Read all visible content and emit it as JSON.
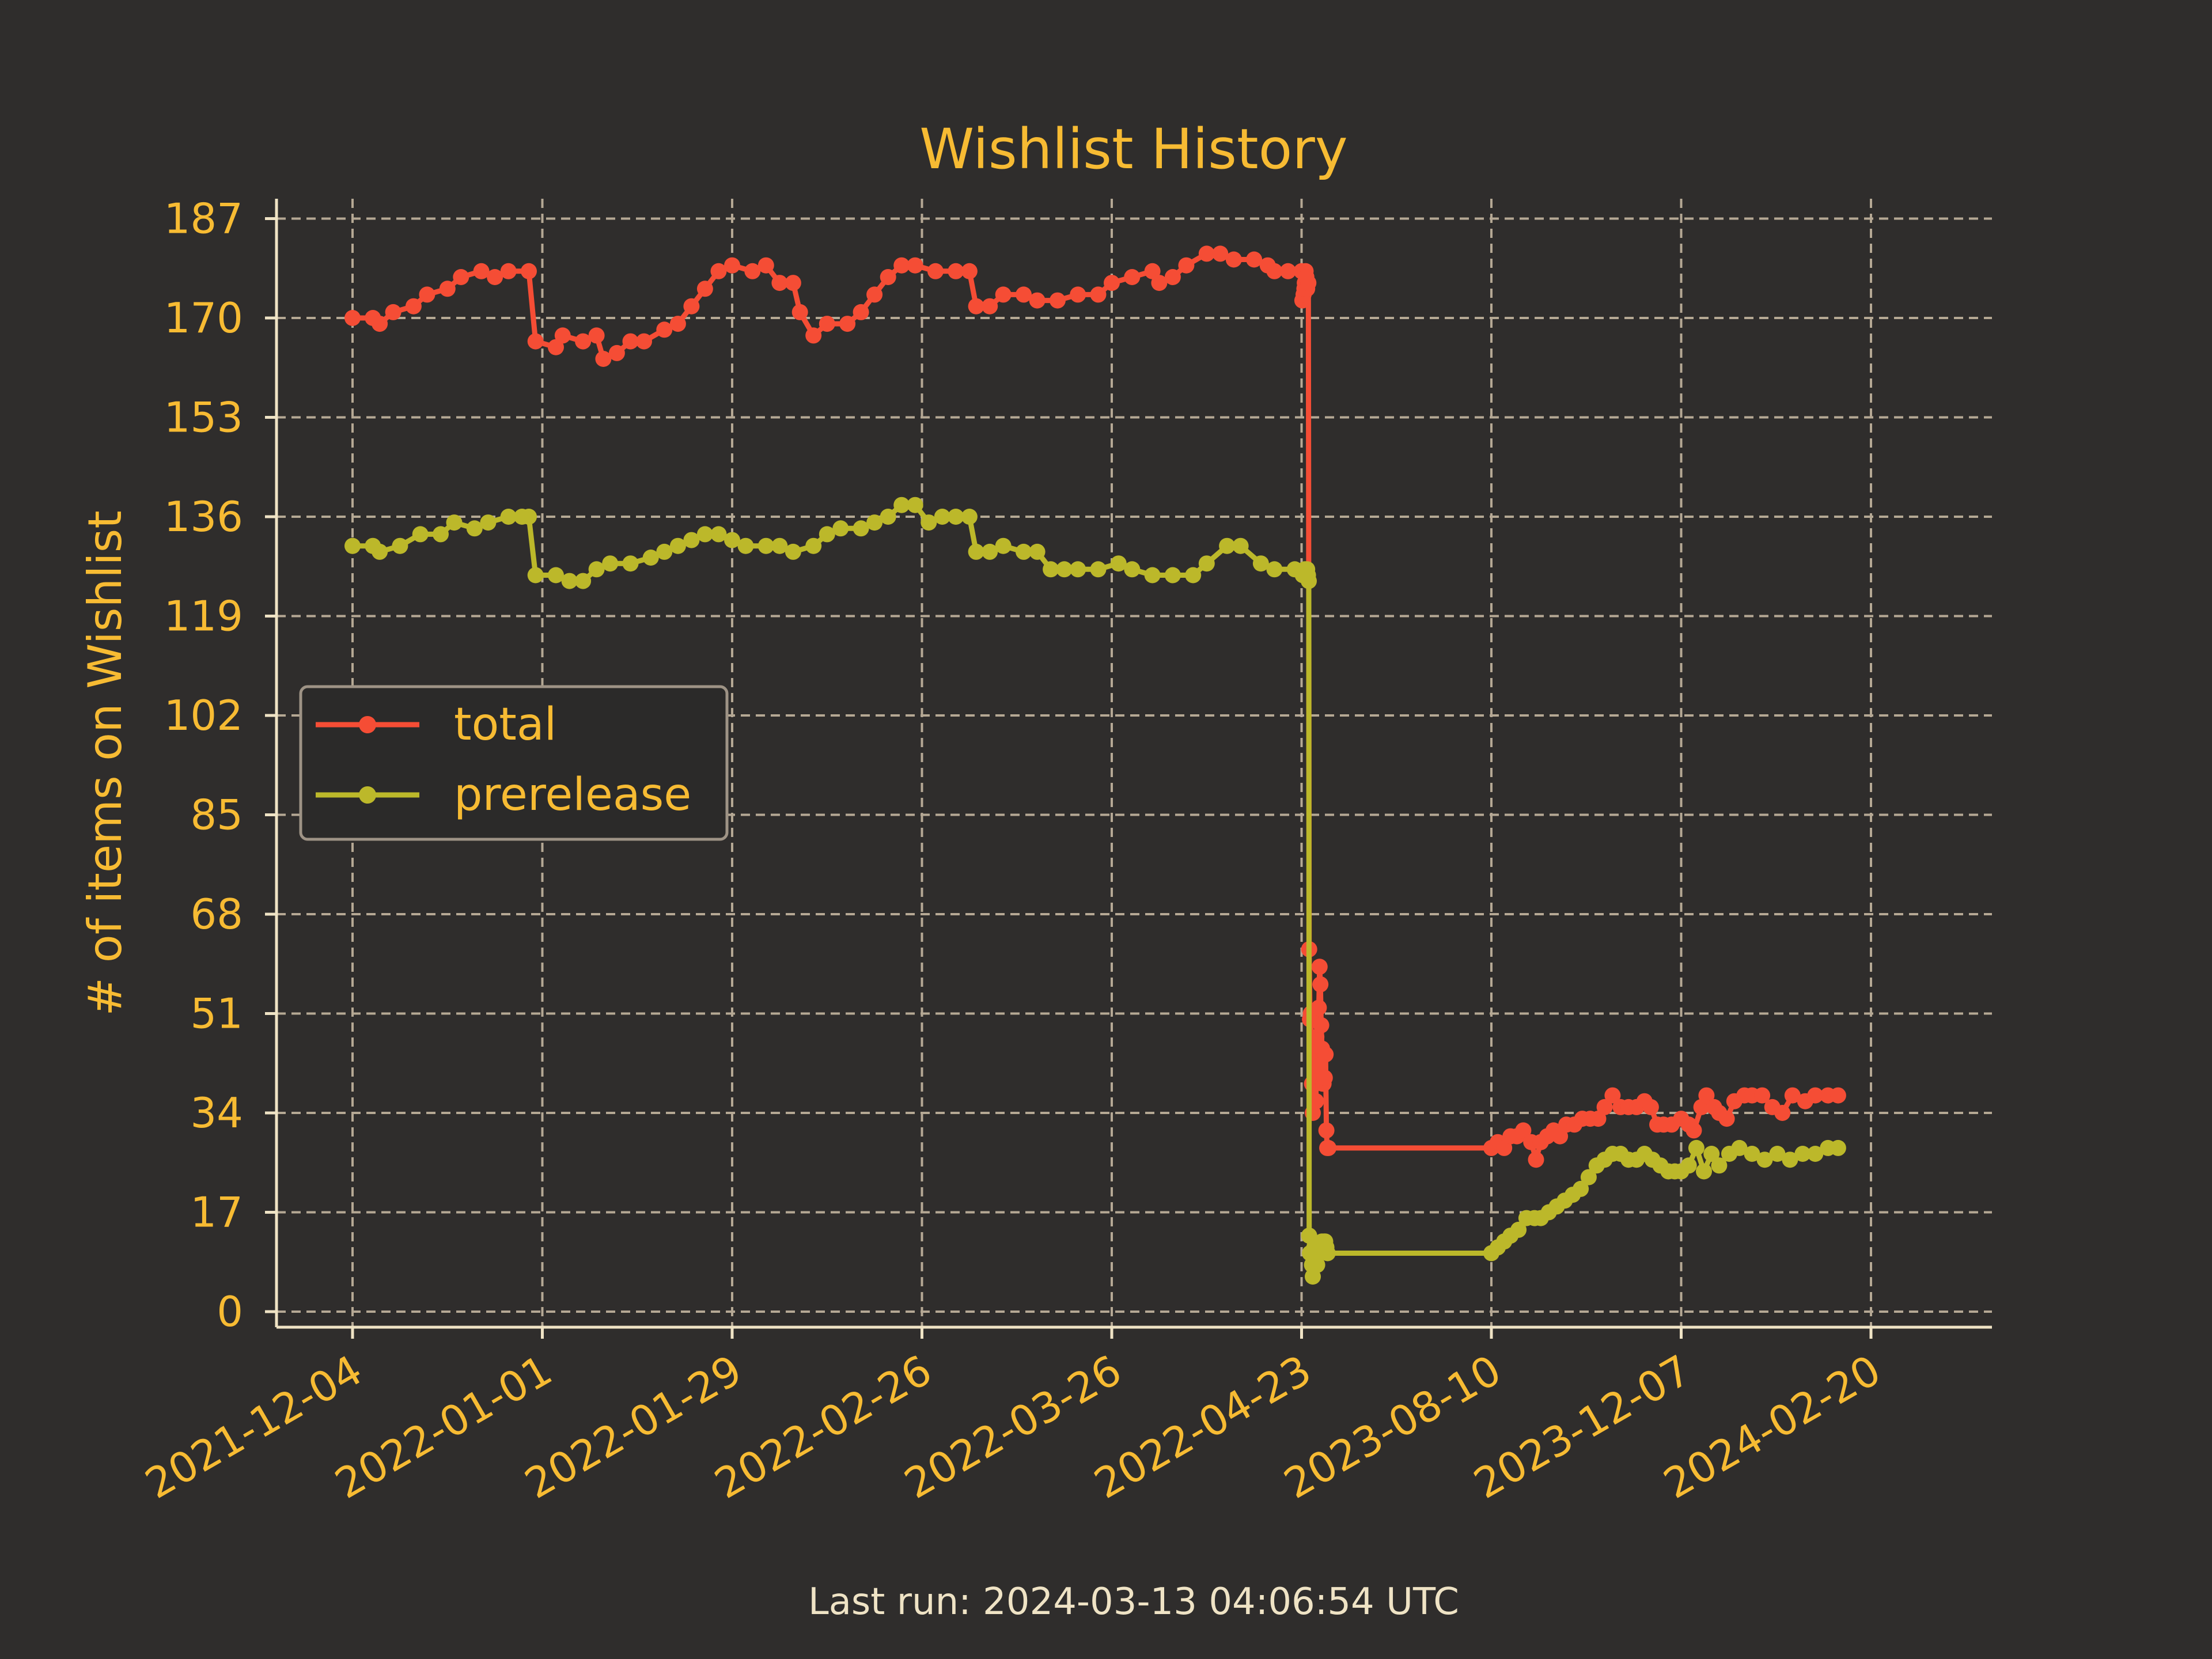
{
  "footer": "Last run: 2024-03-13 04:06:54 UTC",
  "chart_data": {
    "type": "line",
    "title": "Wishlist History",
    "xlabel": "",
    "ylabel": "# of items on Wishlist",
    "x_axis_note": "categorical date axis: equal spacing per tick label",
    "x_ticks": [
      "2021-12-04",
      "2022-01-01",
      "2022-01-29",
      "2022-02-26",
      "2022-03-26",
      "2022-04-23",
      "2023-08-10",
      "2023-12-07",
      "2024-02-20"
    ],
    "y_ticks": [
      0,
      17,
      34,
      51,
      68,
      85,
      102,
      119,
      136,
      153,
      170,
      187
    ],
    "ylim": [
      0,
      187
    ],
    "grid": true,
    "legend_position": "center-left",
    "colors": {
      "background": "#2f2d2c",
      "text": "#f7bb33",
      "grid": "#b5a894",
      "axis": "#efe3c5"
    },
    "series": [
      {
        "name": "total",
        "color": "#f54d35",
        "points": [
          [
            "2021-12-04",
            170
          ],
          [
            "2021-12-07",
            170
          ],
          [
            "2021-12-08",
            169
          ],
          [
            "2021-12-10",
            171
          ],
          [
            "2021-12-13",
            172
          ],
          [
            "2021-12-15",
            174
          ],
          [
            "2021-12-18",
            175
          ],
          [
            "2021-12-20",
            177
          ],
          [
            "2021-12-23",
            178
          ],
          [
            "2021-12-25",
            177
          ],
          [
            "2021-12-27",
            178
          ],
          [
            "2021-12-30",
            178
          ],
          [
            "2021-12-31",
            166
          ],
          [
            "2022-01-03",
            165
          ],
          [
            "2022-01-04",
            167
          ],
          [
            "2022-01-07",
            166
          ],
          [
            "2022-01-09",
            167
          ],
          [
            "2022-01-10",
            163
          ],
          [
            "2022-01-12",
            164
          ],
          [
            "2022-01-14",
            166
          ],
          [
            "2022-01-16",
            166
          ],
          [
            "2022-01-19",
            168
          ],
          [
            "2022-01-21",
            169
          ],
          [
            "2022-01-23",
            172
          ],
          [
            "2022-01-25",
            175
          ],
          [
            "2022-01-27",
            178
          ],
          [
            "2022-01-29",
            179
          ],
          [
            "2022-02-01",
            178
          ],
          [
            "2022-02-03",
            179
          ],
          [
            "2022-02-05",
            176
          ],
          [
            "2022-02-07",
            176
          ],
          [
            "2022-02-08",
            171
          ],
          [
            "2022-02-10",
            167
          ],
          [
            "2022-02-12",
            169
          ],
          [
            "2022-02-15",
            169
          ],
          [
            "2022-02-17",
            171
          ],
          [
            "2022-02-19",
            174
          ],
          [
            "2022-02-21",
            177
          ],
          [
            "2022-02-23",
            179
          ],
          [
            "2022-02-25",
            179
          ],
          [
            "2022-02-28",
            178
          ],
          [
            "2022-03-03",
            178
          ],
          [
            "2022-03-05",
            178
          ],
          [
            "2022-03-06",
            172
          ],
          [
            "2022-03-08",
            172
          ],
          [
            "2022-03-10",
            174
          ],
          [
            "2022-03-13",
            174
          ],
          [
            "2022-03-15",
            173
          ],
          [
            "2022-03-18",
            173
          ],
          [
            "2022-03-21",
            174
          ],
          [
            "2022-03-24",
            174
          ],
          [
            "2022-03-26",
            176
          ],
          [
            "2022-03-29",
            177
          ],
          [
            "2022-04-01",
            178
          ],
          [
            "2022-04-02",
            176
          ],
          [
            "2022-04-04",
            177
          ],
          [
            "2022-04-06",
            179
          ],
          [
            "2022-04-09",
            181
          ],
          [
            "2022-04-11",
            181
          ],
          [
            "2022-04-13",
            180
          ],
          [
            "2022-04-16",
            180
          ],
          [
            "2022-04-18",
            179
          ],
          [
            "2022-04-19",
            178
          ],
          [
            "2022-04-21",
            178
          ],
          [
            "2022-04-23",
            178
          ],
          [
            "2022-04-25",
            173
          ],
          [
            "2022-04-28",
            174
          ],
          [
            "2022-04-30",
            175
          ],
          [
            "2022-05-01",
            176
          ],
          [
            "2022-05-03",
            178
          ],
          [
            "2022-05-05",
            177
          ],
          [
            "2022-05-07",
            175
          ],
          [
            "2022-05-10",
            176
          ],
          [
            "2022-05-12",
            62
          ],
          [
            "2022-05-14",
            50
          ],
          [
            "2022-05-16",
            51
          ],
          [
            "2022-05-19",
            39
          ],
          [
            "2022-05-21",
            34
          ],
          [
            "2022-05-24",
            39
          ],
          [
            "2022-05-27",
            39
          ],
          [
            "2022-05-29",
            36
          ],
          [
            "2022-05-30",
            47
          ],
          [
            "2022-06-01",
            41
          ],
          [
            "2022-06-03",
            42
          ],
          [
            "2022-06-05",
            52
          ],
          [
            "2022-06-07",
            59
          ],
          [
            "2022-06-09",
            56
          ],
          [
            "2022-06-11",
            49
          ],
          [
            "2022-06-13",
            45
          ],
          [
            "2022-06-15",
            39
          ],
          [
            "2022-06-17",
            39
          ],
          [
            "2022-06-20",
            40
          ],
          [
            "2022-06-22",
            44
          ],
          [
            "2022-06-24",
            31
          ],
          [
            "2022-06-26",
            28
          ],
          [
            "2022-06-29",
            28
          ],
          [
            "2023-08-10",
            28
          ],
          [
            "2023-08-14",
            29
          ],
          [
            "2023-08-18",
            28
          ],
          [
            "2023-08-22",
            30
          ],
          [
            "2023-08-26",
            30
          ],
          [
            "2023-08-30",
            31
          ],
          [
            "2023-09-04",
            29
          ],
          [
            "2023-09-07",
            26
          ],
          [
            "2023-09-10",
            29
          ],
          [
            "2023-09-14",
            30
          ],
          [
            "2023-09-18",
            31
          ],
          [
            "2023-09-22",
            30
          ],
          [
            "2023-09-26",
            32
          ],
          [
            "2023-10-01",
            32
          ],
          [
            "2023-10-06",
            33
          ],
          [
            "2023-10-11",
            33
          ],
          [
            "2023-10-16",
            33
          ],
          [
            "2023-10-20",
            35
          ],
          [
            "2023-10-25",
            37
          ],
          [
            "2023-10-30",
            35
          ],
          [
            "2023-11-04",
            35
          ],
          [
            "2023-11-09",
            35
          ],
          [
            "2023-11-14",
            36
          ],
          [
            "2023-11-18",
            35
          ],
          [
            "2023-11-22",
            32
          ],
          [
            "2023-11-26",
            32
          ],
          [
            "2023-12-01",
            32
          ],
          [
            "2023-12-07",
            33
          ],
          [
            "2023-12-10",
            32
          ],
          [
            "2023-12-12",
            31
          ],
          [
            "2023-12-15",
            35
          ],
          [
            "2023-12-17",
            37
          ],
          [
            "2023-12-20",
            35
          ],
          [
            "2023-12-22",
            34
          ],
          [
            "2023-12-25",
            33
          ],
          [
            "2023-12-28",
            36
          ],
          [
            "2024-01-01",
            37
          ],
          [
            "2024-01-04",
            37
          ],
          [
            "2024-01-08",
            37
          ],
          [
            "2024-01-12",
            35
          ],
          [
            "2024-01-16",
            34
          ],
          [
            "2024-01-20",
            37
          ],
          [
            "2024-01-25",
            36
          ],
          [
            "2024-01-29",
            37
          ],
          [
            "2024-02-03",
            37
          ],
          [
            "2024-02-07",
            37
          ]
        ]
      },
      {
        "name": "prerelease",
        "color": "#bcb82a",
        "points": [
          [
            "2021-12-04",
            131
          ],
          [
            "2021-12-07",
            131
          ],
          [
            "2021-12-08",
            130
          ],
          [
            "2021-12-11",
            131
          ],
          [
            "2021-12-14",
            133
          ],
          [
            "2021-12-17",
            133
          ],
          [
            "2021-12-19",
            135
          ],
          [
            "2021-12-22",
            134
          ],
          [
            "2021-12-24",
            135
          ],
          [
            "2021-12-27",
            136
          ],
          [
            "2021-12-29",
            136
          ],
          [
            "2021-12-30",
            136
          ],
          [
            "2021-12-31",
            126
          ],
          [
            "2022-01-03",
            126
          ],
          [
            "2022-01-05",
            125
          ],
          [
            "2022-01-07",
            125
          ],
          [
            "2022-01-09",
            127
          ],
          [
            "2022-01-11",
            128
          ],
          [
            "2022-01-14",
            128
          ],
          [
            "2022-01-17",
            129
          ],
          [
            "2022-01-19",
            130
          ],
          [
            "2022-01-21",
            131
          ],
          [
            "2022-01-23",
            132
          ],
          [
            "2022-01-25",
            133
          ],
          [
            "2022-01-27",
            133
          ],
          [
            "2022-01-29",
            132
          ],
          [
            "2022-01-31",
            131
          ],
          [
            "2022-02-03",
            131
          ],
          [
            "2022-02-05",
            131
          ],
          [
            "2022-02-07",
            130
          ],
          [
            "2022-02-10",
            131
          ],
          [
            "2022-02-12",
            133
          ],
          [
            "2022-02-14",
            134
          ],
          [
            "2022-02-17",
            134
          ],
          [
            "2022-02-19",
            135
          ],
          [
            "2022-02-21",
            136
          ],
          [
            "2022-02-23",
            138
          ],
          [
            "2022-02-25",
            138
          ],
          [
            "2022-02-27",
            135
          ],
          [
            "2022-03-01",
            136
          ],
          [
            "2022-03-03",
            136
          ],
          [
            "2022-03-05",
            136
          ],
          [
            "2022-03-06",
            130
          ],
          [
            "2022-03-08",
            130
          ],
          [
            "2022-03-10",
            131
          ],
          [
            "2022-03-13",
            130
          ],
          [
            "2022-03-15",
            130
          ],
          [
            "2022-03-17",
            127
          ],
          [
            "2022-03-19",
            127
          ],
          [
            "2022-03-21",
            127
          ],
          [
            "2022-03-24",
            127
          ],
          [
            "2022-03-27",
            128
          ],
          [
            "2022-03-29",
            127
          ],
          [
            "2022-04-01",
            126
          ],
          [
            "2022-04-04",
            126
          ],
          [
            "2022-04-07",
            126
          ],
          [
            "2022-04-09",
            128
          ],
          [
            "2022-04-12",
            131
          ],
          [
            "2022-04-14",
            131
          ],
          [
            "2022-04-17",
            128
          ],
          [
            "2022-04-19",
            127
          ],
          [
            "2022-04-22",
            127
          ],
          [
            "2022-04-26",
            126
          ],
          [
            "2022-04-29",
            126
          ],
          [
            "2022-05-01",
            127
          ],
          [
            "2022-05-03",
            126
          ],
          [
            "2022-05-05",
            127
          ],
          [
            "2022-05-07",
            127
          ],
          [
            "2022-05-09",
            126
          ],
          [
            "2022-05-11",
            125
          ],
          [
            "2022-05-12",
            13
          ],
          [
            "2022-05-14",
            10
          ],
          [
            "2022-05-16",
            10
          ],
          [
            "2022-05-19",
            8
          ],
          [
            "2022-05-21",
            6
          ],
          [
            "2022-05-23",
            10
          ],
          [
            "2022-05-25",
            11
          ],
          [
            "2022-05-27",
            9
          ],
          [
            "2022-05-29",
            10
          ],
          [
            "2022-06-01",
            8
          ],
          [
            "2022-06-04",
            10
          ],
          [
            "2022-06-07",
            10
          ],
          [
            "2022-06-10",
            11
          ],
          [
            "2022-06-13",
            12
          ],
          [
            "2022-06-15",
            11
          ],
          [
            "2022-06-18",
            12
          ],
          [
            "2022-06-21",
            12
          ],
          [
            "2022-06-24",
            11
          ],
          [
            "2022-06-27",
            10
          ],
          [
            "2023-08-10",
            10
          ],
          [
            "2023-08-14",
            11
          ],
          [
            "2023-08-18",
            12
          ],
          [
            "2023-08-22",
            13
          ],
          [
            "2023-08-27",
            14
          ],
          [
            "2023-09-01",
            16
          ],
          [
            "2023-09-06",
            16
          ],
          [
            "2023-09-10",
            16
          ],
          [
            "2023-09-15",
            17
          ],
          [
            "2023-09-20",
            18
          ],
          [
            "2023-09-25",
            19
          ],
          [
            "2023-09-30",
            20
          ],
          [
            "2023-10-05",
            21
          ],
          [
            "2023-10-10",
            23
          ],
          [
            "2023-10-15",
            25
          ],
          [
            "2023-10-20",
            26
          ],
          [
            "2023-10-25",
            27
          ],
          [
            "2023-10-30",
            27
          ],
          [
            "2023-11-04",
            26
          ],
          [
            "2023-11-09",
            26
          ],
          [
            "2023-11-14",
            27
          ],
          [
            "2023-11-19",
            26
          ],
          [
            "2023-11-24",
            25
          ],
          [
            "2023-11-29",
            24
          ],
          [
            "2023-12-03",
            24
          ],
          [
            "2023-12-07",
            24
          ],
          [
            "2023-12-10",
            25
          ],
          [
            "2023-12-13",
            28
          ],
          [
            "2023-12-16",
            24
          ],
          [
            "2023-12-19",
            27
          ],
          [
            "2023-12-22",
            25
          ],
          [
            "2023-12-26",
            27
          ],
          [
            "2023-12-30",
            28
          ],
          [
            "2024-01-04",
            27
          ],
          [
            "2024-01-09",
            26
          ],
          [
            "2024-01-14",
            27
          ],
          [
            "2024-01-19",
            26
          ],
          [
            "2024-01-24",
            27
          ],
          [
            "2024-01-29",
            27
          ],
          [
            "2024-02-03",
            28
          ],
          [
            "2024-02-07",
            28
          ]
        ]
      }
    ]
  }
}
